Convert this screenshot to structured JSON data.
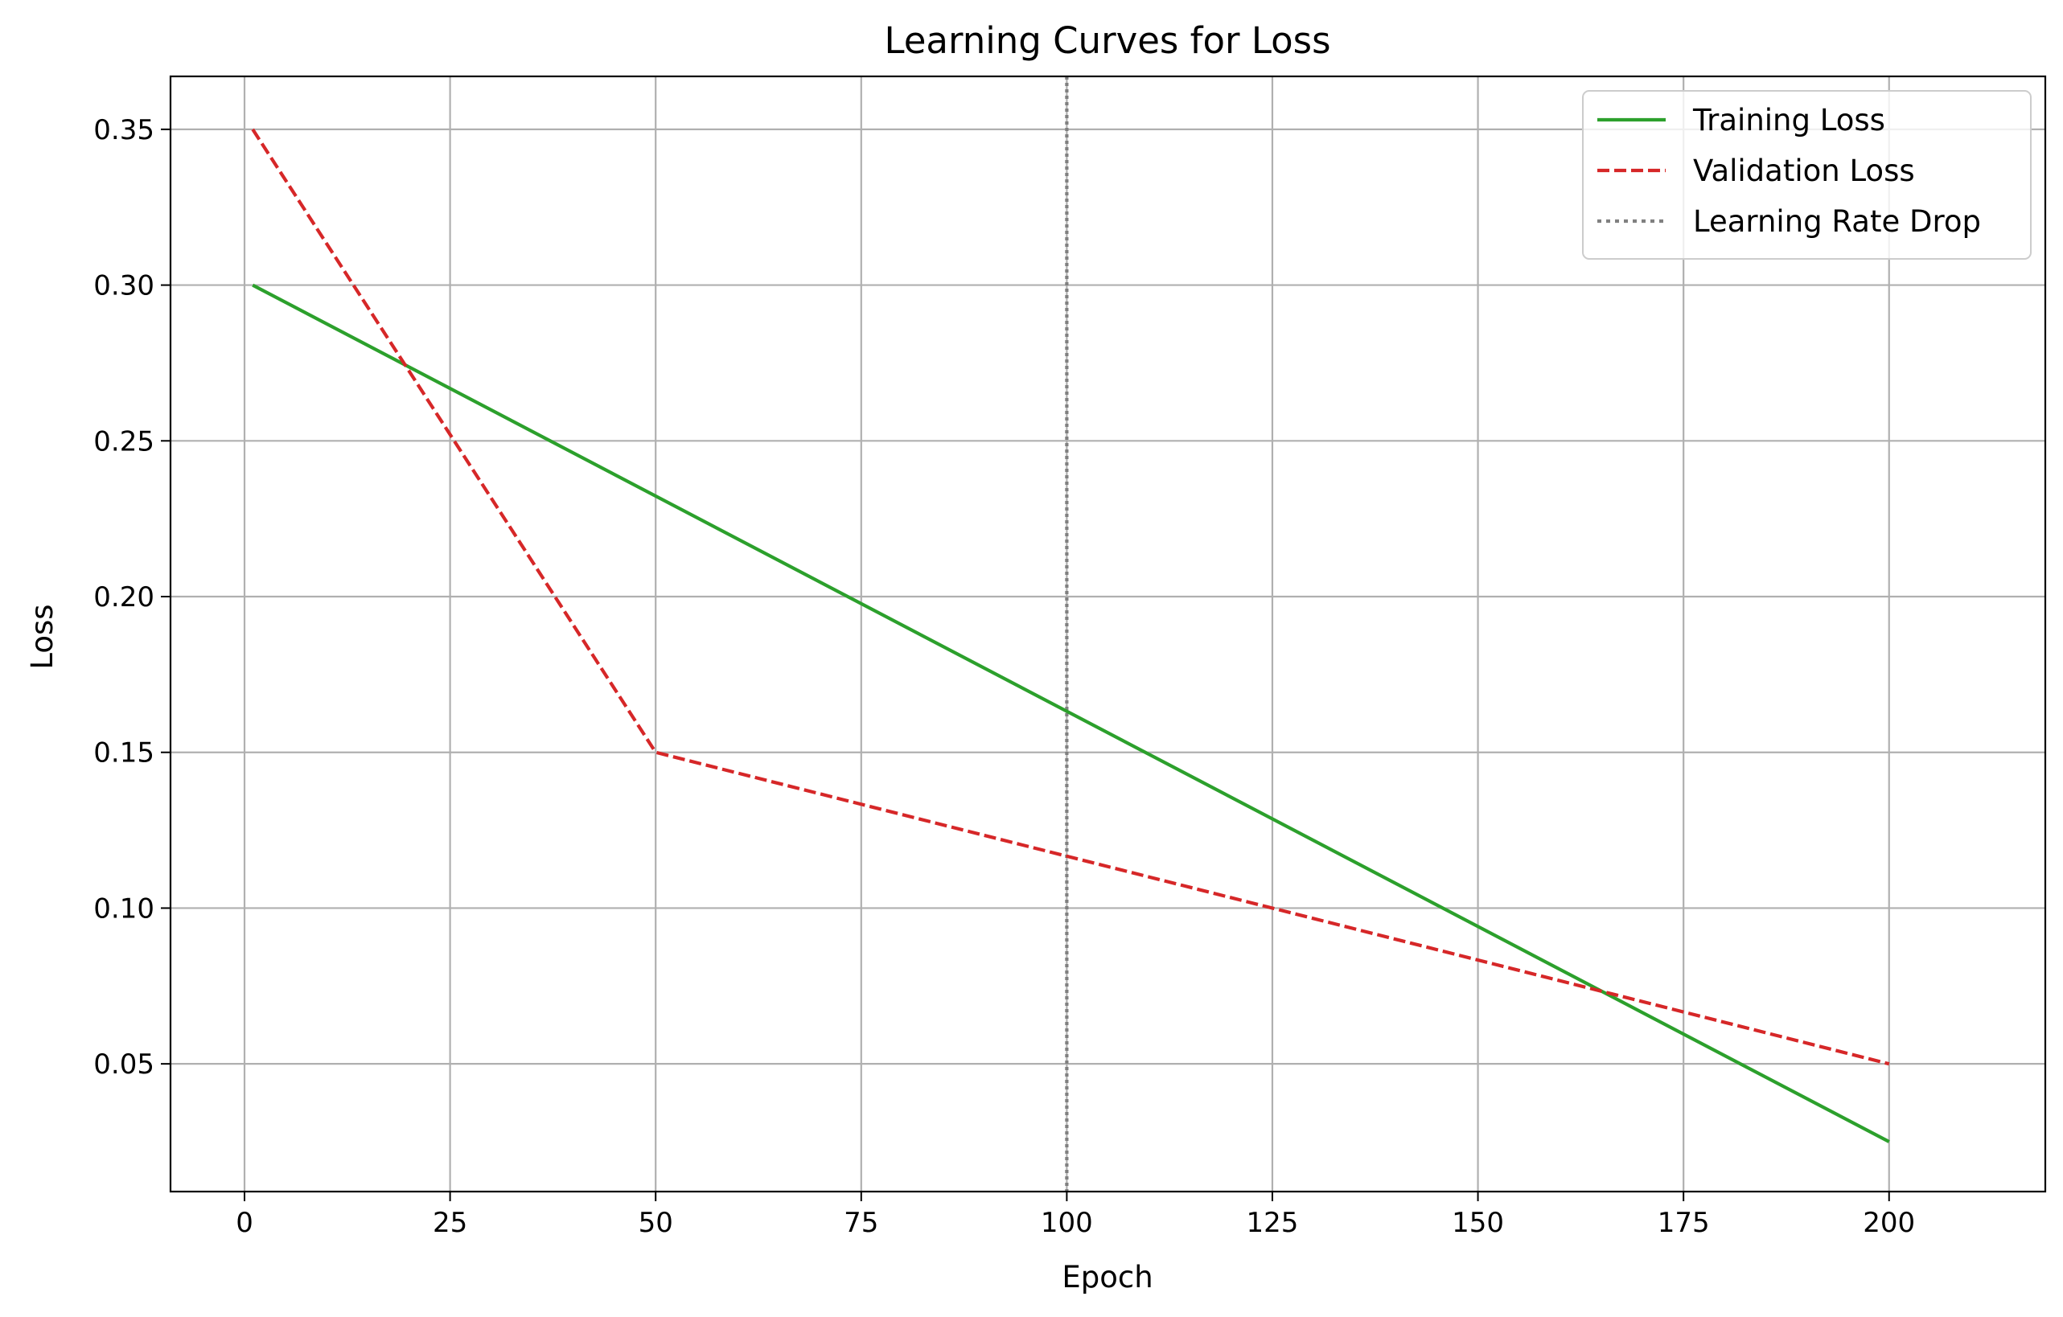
{
  "chart_data": {
    "type": "line",
    "title": "Learning Curves for Loss",
    "xlabel": "Epoch",
    "ylabel": "Loss",
    "xlim": [
      -9,
      219
    ],
    "ylim": [
      0.009,
      0.367
    ],
    "xticks": [
      0,
      25,
      50,
      75,
      100,
      125,
      150,
      175,
      200
    ],
    "yticks": [
      0.05,
      0.1,
      0.15,
      0.2,
      0.25,
      0.3,
      0.35
    ],
    "xtick_labels": [
      "0",
      "25",
      "50",
      "75",
      "100",
      "125",
      "150",
      "175",
      "200"
    ],
    "ytick_labels": [
      "0.05",
      "0.10",
      "0.15",
      "0.20",
      "0.25",
      "0.30",
      "0.35"
    ],
    "grid": true,
    "legend_position": "top-right",
    "series": [
      {
        "name": "Training Loss",
        "color": "#2ca02c",
        "style": "solid",
        "x": [
          1,
          200
        ],
        "y": [
          0.3,
          0.025
        ]
      },
      {
        "name": "Validation Loss",
        "color": "#d62728",
        "style": "dashed",
        "x": [
          1,
          50,
          200
        ],
        "y": [
          0.35,
          0.15,
          0.05
        ]
      }
    ],
    "vlines": [
      {
        "name": "Learning Rate Drop",
        "x": 100,
        "color": "#808080",
        "style": "dotted"
      }
    ]
  }
}
